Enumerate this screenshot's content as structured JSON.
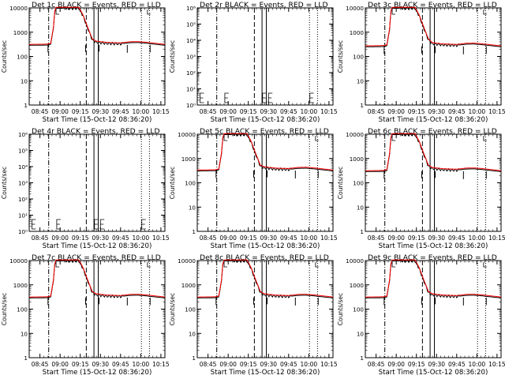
{
  "colors": {
    "events": "#000000",
    "lld": "#ff0000",
    "background": "#ffffff"
  },
  "chart_data": [
    {
      "type": "line",
      "title": "Det 1c BLACK = Events, RED = LLD",
      "xlabel": "Start Time (15-Oct-12 08:36:20)",
      "ylabel": "Counts/sec",
      "yscale": "log",
      "ylim": [
        1,
        10000
      ],
      "xlim": [
        37,
        100
      ],
      "xticks": [
        "08:45",
        "09:00",
        "09:15",
        "09:30",
        "09:45",
        "10:00",
        "10:15"
      ],
      "yticks": [
        "1",
        "10",
        "100",
        "1000",
        "10000"
      ],
      "events_flat": 300,
      "peak": 10000
    },
    {
      "type": "line",
      "title": "Det 2r BLACK = Events, RED = LLD",
      "xlabel": "Start Time (15-Oct-12 08:36:20)",
      "ylabel": "Counts/sec",
      "yscale": "log",
      "ylim": [
        1,
        1000000
      ],
      "xlim": [
        37,
        100
      ],
      "xticks": [
        "08:45",
        "09:00",
        "09:15",
        "09:30",
        "09:45",
        "10:00",
        "10:15"
      ],
      "yticks": [
        "10⁰",
        "10¹",
        "10²",
        "10³",
        "10⁴",
        "10⁵",
        "10⁶"
      ],
      "events_flat": null,
      "peak": null
    },
    {
      "type": "line",
      "title": "Det 3c BLACK = Events, RED = LLD",
      "xlabel": "Start Time (15-Oct-12 08:36:20)",
      "ylabel": "Counts/sec",
      "yscale": "log",
      "ylim": [
        1,
        10000
      ],
      "xlim": [
        37,
        100
      ],
      "xticks": [
        "08:45",
        "09:00",
        "09:15",
        "09:30",
        "09:45",
        "10:00",
        "10:15"
      ],
      "yticks": [
        "1",
        "10",
        "100",
        "1000",
        "10000"
      ],
      "events_flat": 260,
      "peak": 10000
    },
    {
      "type": "line",
      "title": "Det 4r BLACK = Events, RED = LLD",
      "xlabel": "Start Time (15-Oct-12 08:36:20)",
      "ylabel": "Counts/sec",
      "yscale": "log",
      "ylim": [
        1,
        1000000
      ],
      "xlim": [
        37,
        100
      ],
      "xticks": [
        "08:45",
        "09:00",
        "09:15",
        "09:30",
        "09:45",
        "10:00",
        "10:15"
      ],
      "yticks": [
        "10⁰",
        "10¹",
        "10²",
        "10³",
        "10⁴",
        "10⁵",
        "10⁶"
      ],
      "events_flat": null,
      "peak": null
    },
    {
      "type": "line",
      "title": "Det 5c BLACK = Events, RED = LLD",
      "xlabel": "Start Time (15-Oct-12 08:36:20)",
      "ylabel": "Counts/sec",
      "yscale": "log",
      "ylim": [
        1,
        10000
      ],
      "xlim": [
        37,
        100
      ],
      "xticks": [
        "08:45",
        "09:00",
        "09:15",
        "09:30",
        "09:45",
        "10:00",
        "10:15"
      ],
      "yticks": [
        "1",
        "10",
        "100",
        "1000",
        "10000"
      ],
      "events_flat": 320,
      "peak": 10000
    },
    {
      "type": "line",
      "title": "Det 6c BLACK = Events, RED = LLD",
      "xlabel": "Start Time (15-Oct-12 08:36:20)",
      "ylabel": "Counts/sec",
      "yscale": "log",
      "ylim": [
        1,
        10000
      ],
      "xlim": [
        37,
        100
      ],
      "xticks": [
        "08:45",
        "09:00",
        "09:15",
        "09:30",
        "09:45",
        "10:00",
        "10:15"
      ],
      "yticks": [
        "1",
        "10",
        "100",
        "1000",
        "10000"
      ],
      "events_flat": 300,
      "peak": 10000
    },
    {
      "type": "line",
      "title": "Det 7c BLACK = Events, RED = LLD",
      "xlabel": "Start Time (15-Oct-12 08:36:20)",
      "ylabel": "Counts/sec",
      "yscale": "log",
      "ylim": [
        1,
        10000
      ],
      "xlim": [
        37,
        100
      ],
      "xticks": [
        "08:45",
        "09:00",
        "09:15",
        "09:30",
        "09:45",
        "10:00",
        "10:15"
      ],
      "yticks": [
        "1",
        "10",
        "100",
        "1000",
        "10000"
      ],
      "events_flat": 300,
      "peak": 10000
    },
    {
      "type": "line",
      "title": "Det 8c BLACK = Events, RED = LLD",
      "xlabel": "Start Time (15-Oct-12 08:36:20)",
      "ylabel": "Counts/sec",
      "yscale": "log",
      "ylim": [
        1,
        10000
      ],
      "xlim": [
        37,
        100
      ],
      "xticks": [
        "08:45",
        "09:00",
        "09:15",
        "09:30",
        "09:45",
        "10:00",
        "10:15"
      ],
      "yticks": [
        "1",
        "10",
        "100",
        "1000",
        "10000"
      ],
      "events_flat": 300,
      "peak": 10000
    },
    {
      "type": "line",
      "title": "Det 9c BLACK = Events, RED = LLD",
      "xlabel": "Start Time (15-Oct-12 08:36:20)",
      "ylabel": "Counts/sec",
      "yscale": "log",
      "ylim": [
        1,
        10000
      ],
      "xlim": [
        37,
        100
      ],
      "xticks": [
        "08:45",
        "09:00",
        "09:15",
        "09:30",
        "09:45",
        "10:00",
        "10:15"
      ],
      "yticks": [
        "1",
        "10",
        "100",
        "1000",
        "10000"
      ],
      "events_flat": 300,
      "peak": 10000
    }
  ]
}
